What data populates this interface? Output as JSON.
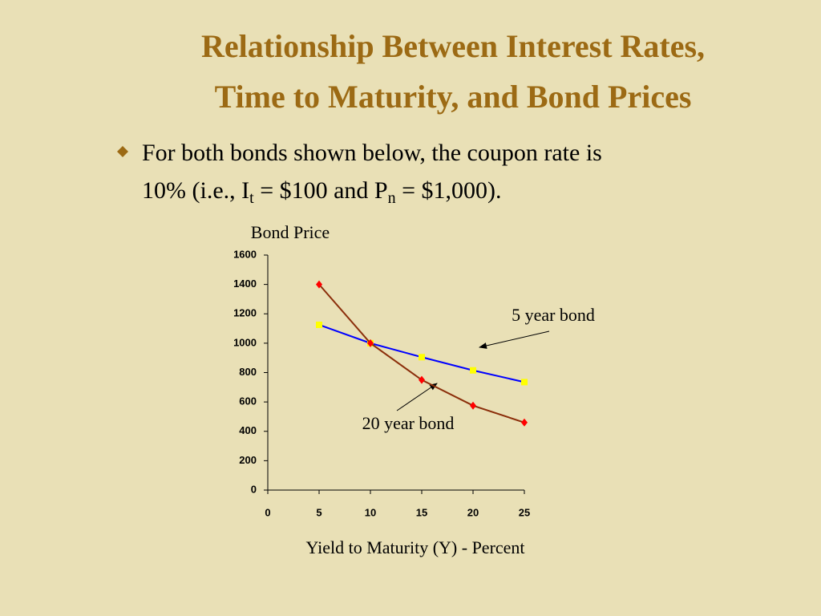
{
  "title": [
    "Relationship Between Interest Rates,",
    "Time to Maturity, and Bond Prices"
  ],
  "bullet": {
    "line1": "For both bonds shown below, the coupon rate is",
    "line2": [
      "10% (i.e., I",
      "t",
      " = $100 and P",
      "n",
      " = $1,000)."
    ]
  },
  "chart_data": {
    "type": "line",
    "y_label": "Bond Price",
    "x_label": "Yield to Maturity (Y) - Percent",
    "x": [
      5,
      10,
      15,
      20,
      25
    ],
    "xlim": [
      0,
      25
    ],
    "xticks": [
      0,
      5,
      10,
      15,
      20,
      25
    ],
    "ylim": [
      0,
      1600
    ],
    "yticks": [
      0,
      200,
      400,
      600,
      800,
      1000,
      1200,
      1400,
      1600
    ],
    "series": [
      {
        "name": "5 year bond",
        "color": "#0000ff",
        "marker_color": "#ffff00",
        "marker": "square",
        "values": [
          1125,
          1000,
          905,
          815,
          735
        ]
      },
      {
        "name": "20 year bond",
        "color": "#8b2e0a",
        "marker_color": "#ff0000",
        "marker": "diamond",
        "values": [
          1400,
          1000,
          750,
          575,
          460
        ]
      }
    ]
  }
}
